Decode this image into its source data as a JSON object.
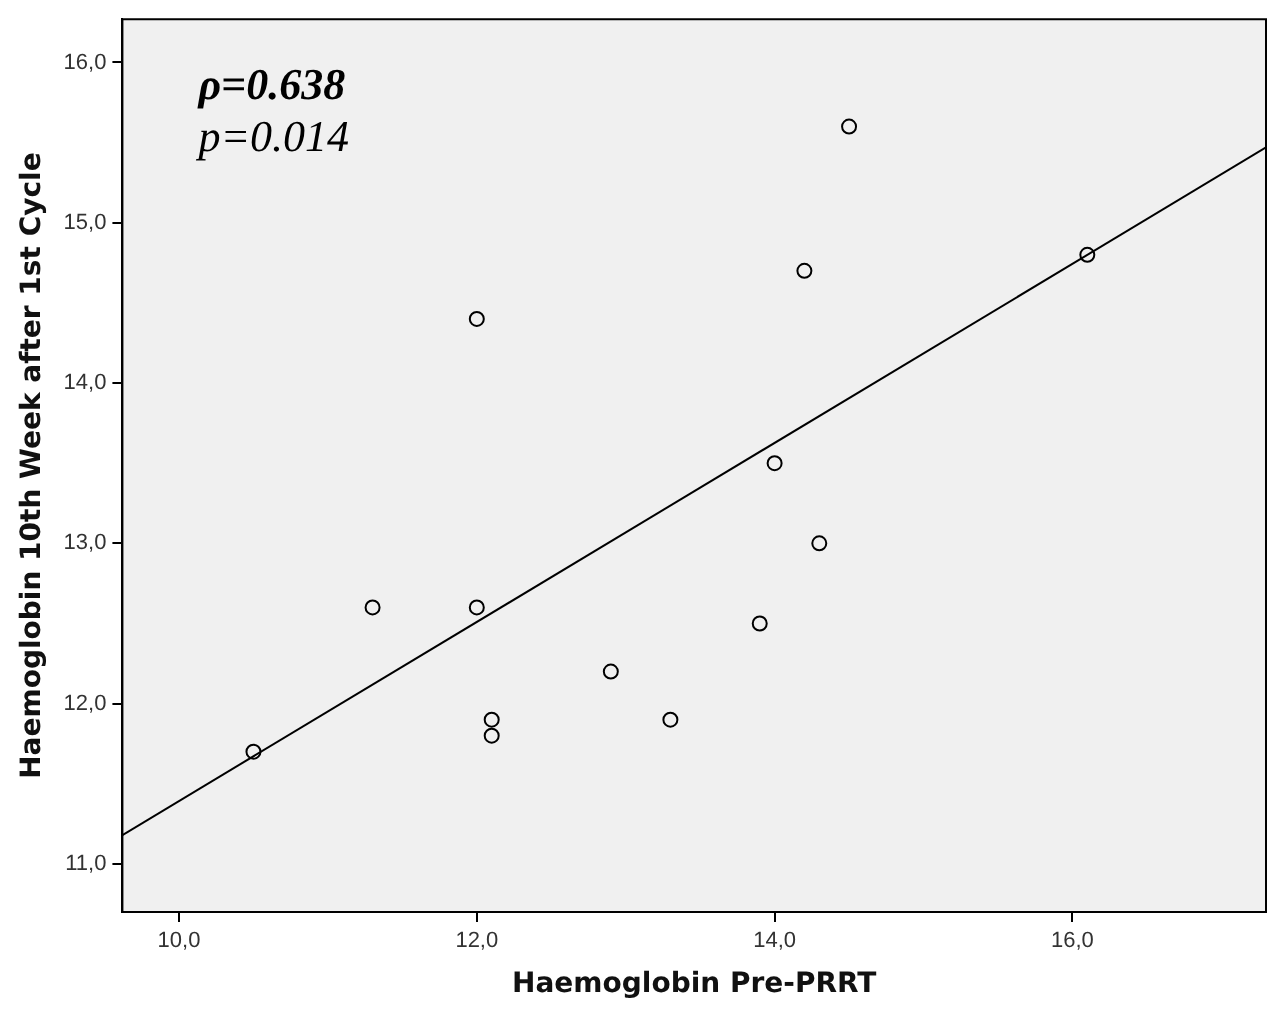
{
  "chart_data": {
    "type": "scatter",
    "xlabel": "Haemoglobin Pre-PRRT",
    "ylabel": "Haemoglobin 10th Week after 1st Cycle",
    "annotations": [
      "ρ=0.638",
      "p=0.014"
    ],
    "xlim": [
      9.62,
      17.3
    ],
    "ylim": [
      10.7,
      16.27
    ],
    "xticks": [
      {
        "value": 10,
        "label": "10,0"
      },
      {
        "value": 12,
        "label": "12,0"
      },
      {
        "value": 14,
        "label": "14,0"
      },
      {
        "value": 16,
        "label": "16,0"
      }
    ],
    "yticks": [
      {
        "value": 11,
        "label": "11,0"
      },
      {
        "value": 12,
        "label": "12,0"
      },
      {
        "value": 13,
        "label": "13,0"
      },
      {
        "value": 14,
        "label": "14,0"
      },
      {
        "value": 15,
        "label": "15,0"
      },
      {
        "value": 16,
        "label": "16,0"
      }
    ],
    "grid": false,
    "legend": false,
    "series": [
      {
        "marker": "circle",
        "color": "#000000",
        "x": [
          10.5,
          11.3,
          12.0,
          12.0,
          12.1,
          12.1,
          12.9,
          13.3,
          13.9,
          14.0,
          14.3,
          14.2,
          14.5,
          16.1
        ],
        "values": [
          11.7,
          12.6,
          14.4,
          12.6,
          11.9,
          11.8,
          12.2,
          11.9,
          12.5,
          13.5,
          13.0,
          14.7,
          15.6,
          14.8
        ]
      },
      {
        "type": "line",
        "marker": "none",
        "color": "#000000",
        "x": [
          9.62,
          17.3
        ],
        "values": [
          11.18,
          15.47
        ]
      }
    ]
  }
}
